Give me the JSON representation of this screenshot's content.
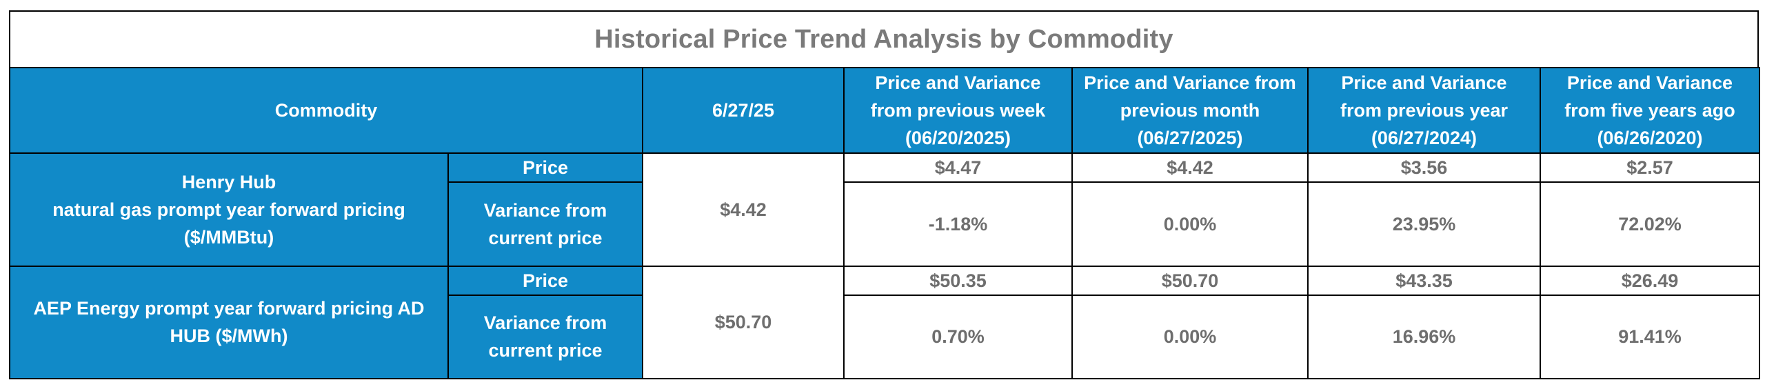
{
  "title": "Historical Price Trend Analysis by Commodity",
  "header": {
    "commodity": "Commodity",
    "current_date": "6/27/25",
    "week": "Price and Variance\nfrom previous week\n(06/20/2025)",
    "month": "Price and Variance from\nprevious month\n(06/27/2025)",
    "year": "Price and Variance\nfrom previous year\n(06/27/2024)",
    "five_years": "Price and Variance\nfrom five years ago\n(06/26/2020)"
  },
  "rows": [
    {
      "commodity": "Henry Hub\nnatural gas prompt year forward pricing\n($/MMBtu)",
      "price_label": "Price",
      "variance_label": "Variance from\ncurrent price",
      "current": "$4.42",
      "prices": [
        "$4.47",
        "$4.42",
        "$3.56",
        "$2.57"
      ],
      "variances": [
        "-1.18%",
        "0.00%",
        "23.95%",
        "72.02%"
      ]
    },
    {
      "commodity": "AEP Energy prompt year forward pricing AD\nHUB ($/MWh)",
      "price_label": "Price",
      "variance_label": "Variance from\ncurrent price",
      "current": "$50.70",
      "prices": [
        "$50.35",
        "$50.70",
        "$43.35",
        "$26.49"
      ],
      "variances": [
        "0.70%",
        "0.00%",
        "16.96%",
        "91.41%"
      ]
    }
  ],
  "colors": {
    "header_blue": "#118ac8",
    "title_gray": "#7a7a7a",
    "value_gray": "#6e6e6e"
  }
}
